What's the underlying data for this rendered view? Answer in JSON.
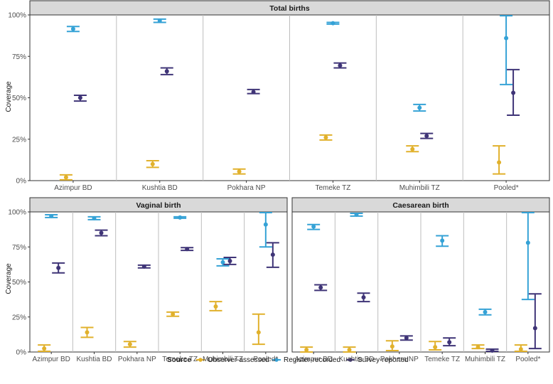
{
  "colors": {
    "Observer-assessed": "#E1B12C",
    "Register-recorded": "#35A2D6",
    "Survey-reported": "#3F3477",
    "strip_fill": "#d9d9d9",
    "panel_border": "#333333",
    "separator": "#bdbdbd"
  },
  "legend": {
    "title": "Source",
    "items": [
      "Observer-assessed",
      "Register-recorded",
      "Survey-reported"
    ]
  },
  "chart_data": [
    {
      "type": "errorbar",
      "title": "Total births",
      "ylabel": "Coverage",
      "ylim": [
        0,
        100
      ],
      "yticks": [
        "0%",
        "25%",
        "50%",
        "75%",
        "100%"
      ],
      "categories": [
        "Azimpur BD",
        "Kushtia BD",
        "Pokhara NP",
        "Temeke TZ",
        "Muhimbili TZ",
        "Pooled*"
      ],
      "series": [
        {
          "name": "Observer-assessed",
          "values": [
            2,
            10,
            5.5,
            26,
            19,
            11
          ],
          "lower": [
            0.5,
            8,
            4,
            24.5,
            17.5,
            4
          ],
          "upper": [
            3.5,
            12,
            7,
            27.5,
            21,
            21
          ]
        },
        {
          "name": "Register-recorded",
          "values": [
            91.5,
            96.5,
            null,
            95,
            44,
            86
          ],
          "lower": [
            90,
            95.5,
            null,
            94.5,
            42,
            58
          ],
          "upper": [
            93,
            97.5,
            null,
            95.5,
            46,
            99.5
          ]
        },
        {
          "name": "Survey-reported",
          "values": [
            50,
            66,
            53.5,
            69.5,
            27,
            53
          ],
          "lower": [
            48,
            64,
            52.5,
            68,
            25.5,
            39.5
          ],
          "upper": [
            51.5,
            68,
            55,
            71,
            28.5,
            67
          ]
        }
      ]
    },
    {
      "type": "errorbar",
      "title": "Vaginal birth",
      "ylabel": "Coverage",
      "ylim": [
        0,
        100
      ],
      "yticks": [
        "0%",
        "25%",
        "50%",
        "75%",
        "100%"
      ],
      "categories": [
        "Azimpur BD",
        "Kushtia BD",
        "Pokhara NP",
        "Temeke TZ",
        "Muhimbili TZ",
        "Pooled*"
      ],
      "series": [
        {
          "name": "Observer-assessed",
          "values": [
            2.5,
            14,
            5.5,
            27,
            32.5,
            14
          ],
          "lower": [
            0.5,
            10.5,
            3.5,
            25.5,
            29.5,
            5.5
          ],
          "upper": [
            5,
            17.5,
            7.5,
            28.5,
            36,
            27
          ]
        },
        {
          "name": "Register-recorded",
          "values": [
            97,
            95.5,
            null,
            96,
            64,
            91
          ],
          "lower": [
            96,
            94.5,
            null,
            95.5,
            61.5,
            75
          ],
          "upper": [
            98,
            96.5,
            null,
            96.5,
            66.5,
            99.5
          ]
        },
        {
          "name": "Survey-reported",
          "values": [
            60,
            85,
            61,
            73.5,
            65,
            69.5
          ],
          "lower": [
            56.5,
            83,
            60,
            72.5,
            62.5,
            60.5
          ],
          "upper": [
            63.5,
            87,
            62,
            74.5,
            67.5,
            78
          ]
        }
      ]
    },
    {
      "type": "errorbar",
      "title": "Caesarean birth",
      "ylabel": "",
      "ylim": [
        0,
        100
      ],
      "yticks": [],
      "categories": [
        "Azimpur BD",
        "Kushtia BD",
        "Pokhara NP",
        "Temeke TZ",
        "Muhimbili TZ",
        "Pooled*"
      ],
      "series": [
        {
          "name": "Observer-assessed",
          "values": [
            1.5,
            1.5,
            4,
            3.5,
            3.5,
            2
          ],
          "lower": [
            0,
            0,
            1,
            1.5,
            2.5,
            0.5
          ],
          "upper": [
            3.5,
            3.5,
            8,
            7.5,
            5,
            5
          ]
        },
        {
          "name": "Register-recorded",
          "values": [
            89.5,
            98,
            null,
            79.5,
            28.5,
            78
          ],
          "lower": [
            87.5,
            97,
            null,
            75.5,
            26.5,
            37.5
          ],
          "upper": [
            91,
            99,
            null,
            83,
            30.5,
            99.5
          ]
        },
        {
          "name": "Survey-reported",
          "values": [
            46,
            39,
            10,
            7,
            1,
            17
          ],
          "lower": [
            44,
            36,
            8.5,
            4.5,
            0.5,
            2.5
          ],
          "upper": [
            48,
            42,
            11.5,
            10,
            2,
            41.5
          ]
        }
      ]
    }
  ]
}
